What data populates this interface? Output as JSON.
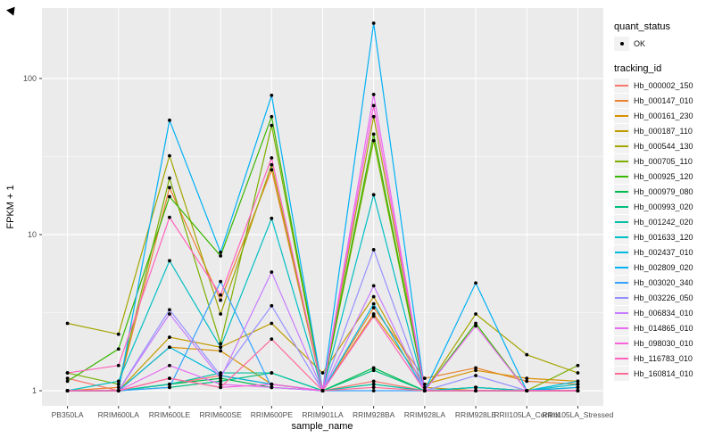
{
  "chart_data": {
    "type": "line",
    "title": "",
    "xlabel": "sample_name",
    "ylabel": "FPKM + 1",
    "y_scale": "log10",
    "y_ticks": [
      1,
      10,
      100
    ],
    "y_tick_labels": [
      "1",
      "10",
      "100"
    ],
    "y_minor_ticks": [
      3.162,
      31.62
    ],
    "ylim": [
      0.93,
      290
    ],
    "grid": true,
    "panel_bg": "#EBEBEB",
    "grid_color": "#FFFFFF",
    "point_color": "#000000",
    "legend_position": "right",
    "categories": [
      "PB350LA",
      "RRIM600LA",
      "RRIM600LE",
      "RRIM600SE",
      "RRIM600PE",
      "RRIM901LA",
      "RRIM928BA",
      "RRIM928LA",
      "RRIM928LE",
      "RRII105LA_Control",
      "RRII105LA_Stressed"
    ],
    "series": [
      {
        "name": "Hb_000002_150",
        "color": "#F8766D",
        "values": [
          1.2,
          1.0,
          1.1,
          1.25,
          1.1,
          1.0,
          1.15,
          1.0,
          1.05,
          1.0,
          1.0
        ]
      },
      {
        "name": "Hb_000147_010",
        "color": "#EA8331",
        "values": [
          1.0,
          1.05,
          20,
          3.8,
          26,
          1.0,
          3.4,
          1.2,
          1.4,
          1.15,
          1.1
        ]
      },
      {
        "name": "Hb_000161_230",
        "color": "#D89000",
        "values": [
          1.0,
          1.0,
          1.9,
          1.8,
          1.1,
          1.0,
          3.1,
          1.1,
          1.35,
          1.2,
          1.15
        ]
      },
      {
        "name": "Hb_000187_110",
        "color": "#C09B00",
        "values": [
          1.0,
          1.0,
          2.2,
          1.9,
          2.7,
          1.3,
          4.0,
          1.05,
          1.0,
          1.0,
          1.05
        ]
      },
      {
        "name": "Hb_000544_130",
        "color": "#A3A500",
        "values": [
          2.7,
          2.3,
          32,
          3.1,
          28,
          1.0,
          57,
          1.0,
          3.1,
          1.7,
          1.3
        ]
      },
      {
        "name": "Hb_000705_110",
        "color": "#7CAE00",
        "values": [
          1.3,
          1.1,
          23,
          2.0,
          50,
          1.0,
          40,
          1.0,
          1.05,
          1.0,
          1.45
        ]
      },
      {
        "name": "Hb_000925_120",
        "color": "#39B600",
        "values": [
          1.15,
          1.85,
          17.5,
          7.3,
          57,
          1.0,
          44,
          1.0,
          2.7,
          1.0,
          1.0
        ]
      },
      {
        "name": "Hb_000979_080",
        "color": "#00BB4E",
        "values": [
          1.0,
          1.0,
          1.1,
          1.2,
          1.05,
          1.0,
          1.4,
          1.0,
          1.0,
          1.0,
          1.0
        ]
      },
      {
        "name": "Hb_000993_020",
        "color": "#00BF7D",
        "values": [
          1.0,
          1.0,
          1.05,
          1.15,
          1.3,
          1.0,
          1.35,
          1.0,
          1.05,
          1.0,
          1.0
        ]
      },
      {
        "name": "Hb_001242_020",
        "color": "#00C1A3",
        "values": [
          1.0,
          1.0,
          1.1,
          1.3,
          1.3,
          1.0,
          1.1,
          1.0,
          1.0,
          1.0,
          1.0
        ]
      },
      {
        "name": "Hb_001633_120",
        "color": "#00BFC4",
        "values": [
          1.0,
          1.15,
          6.8,
          1.9,
          12.7,
          1.0,
          18,
          1.0,
          1.05,
          1.0,
          1.1
        ]
      },
      {
        "name": "Hb_002437_010",
        "color": "#00BAE0",
        "values": [
          1.0,
          1.0,
          1.9,
          1.25,
          1.1,
          1.0,
          3.6,
          1.0,
          1.0,
          1.0,
          1.15
        ]
      },
      {
        "name": "Hb_002809_020",
        "color": "#00B0F6",
        "values": [
          1.0,
          1.0,
          54,
          7.7,
          78,
          1.0,
          226,
          1.0,
          4.9,
          1.0,
          1.05
        ]
      },
      {
        "name": "Hb_003020_340",
        "color": "#35A2FF",
        "values": [
          1.0,
          1.0,
          1.05,
          5.0,
          1.05,
          1.0,
          1.0,
          1.0,
          1.0,
          1.0,
          1.0
        ]
      },
      {
        "name": "Hb_003226_050",
        "color": "#9590FF",
        "values": [
          1.0,
          1.0,
          3.3,
          1.25,
          3.5,
          1.0,
          8.0,
          1.0,
          1.25,
          1.0,
          1.0
        ]
      },
      {
        "name": "Hb_006834_010",
        "color": "#C77CFF",
        "values": [
          1.0,
          1.0,
          3.1,
          1.2,
          5.75,
          1.0,
          4.7,
          1.0,
          1.0,
          1.0,
          1.0
        ]
      },
      {
        "name": "Hb_014865_010",
        "color": "#E76BF3",
        "values": [
          1.0,
          1.0,
          1.45,
          1.1,
          1.05,
          1.0,
          79,
          1.0,
          2.6,
          1.0,
          1.0
        ]
      },
      {
        "name": "Hb_098030_010",
        "color": "#FA62DB",
        "values": [
          1.0,
          1.0,
          1.2,
          1.05,
          1.1,
          1.0,
          67,
          1.0,
          1.0,
          1.0,
          1.0
        ]
      },
      {
        "name": "Hb_116783_010",
        "color": "#FF62BC",
        "values": [
          1.3,
          1.45,
          12.9,
          4.1,
          31,
          1.0,
          3.0,
          1.0,
          1.0,
          1.0,
          1.0
        ]
      },
      {
        "name": "Hb_160814_010",
        "color": "#FF6A98",
        "values": [
          1.0,
          1.0,
          1.2,
          1.05,
          2.14,
          1.0,
          1.05,
          1.0,
          1.0,
          1.0,
          1.0
        ]
      }
    ],
    "legend": {
      "quant_status_title": "quant_status",
      "quant_status_items": [
        "OK"
      ],
      "tracking_title": "tracking_id"
    }
  }
}
